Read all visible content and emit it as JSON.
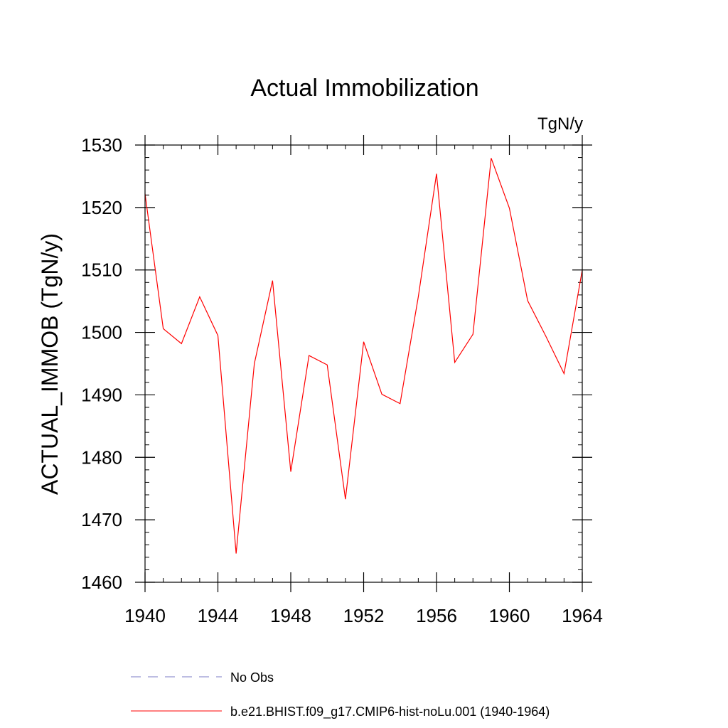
{
  "chart_data": {
    "type": "line",
    "title": "Actual Immobilization",
    "units": "TgN/y",
    "ylabel": "ACTUAL_IMMOB  (TgN/y)",
    "xlabel": "",
    "xlim": [
      1940,
      1964
    ],
    "ylim": [
      1460,
      1530
    ],
    "x_ticks": [
      1940,
      1944,
      1948,
      1952,
      1956,
      1960,
      1964
    ],
    "y_ticks": [
      1460,
      1470,
      1480,
      1490,
      1500,
      1510,
      1520,
      1530
    ],
    "x_minor_step": 1,
    "y_minor_step": 2,
    "grid": false,
    "legend_position": "bottom",
    "series": [
      {
        "name": "b.e21.BHIST.f09_g17.CMIP6-hist-noLu.001 (1940-1964)",
        "color": "#ff0000",
        "style": "solid",
        "x": [
          1940,
          1941,
          1942,
          1943,
          1944,
          1945,
          1946,
          1947,
          1948,
          1949,
          1950,
          1951,
          1952,
          1953,
          1954,
          1955,
          1956,
          1957,
          1958,
          1959,
          1960,
          1961,
          1962,
          1963,
          1964
        ],
        "y": [
          1522.2,
          1500.6,
          1498.2,
          1505.7,
          1499.5,
          1464.6,
          1495.0,
          1508.3,
          1477.7,
          1496.3,
          1494.8,
          1473.3,
          1498.5,
          1490.1,
          1488.6,
          1505.7,
          1525.4,
          1495.2,
          1499.7,
          1527.9,
          1519.9,
          1505.1,
          1499.4,
          1493.4,
          1510.0
        ]
      }
    ],
    "legend": [
      {
        "label": "No Obs",
        "color": "#7b7bc4",
        "style": "dashed"
      },
      {
        "label": "b.e21.BHIST.f09_g17.CMIP6-hist-noLu.001 (1940-1964)",
        "color": "#ff0000",
        "style": "solid"
      }
    ]
  }
}
